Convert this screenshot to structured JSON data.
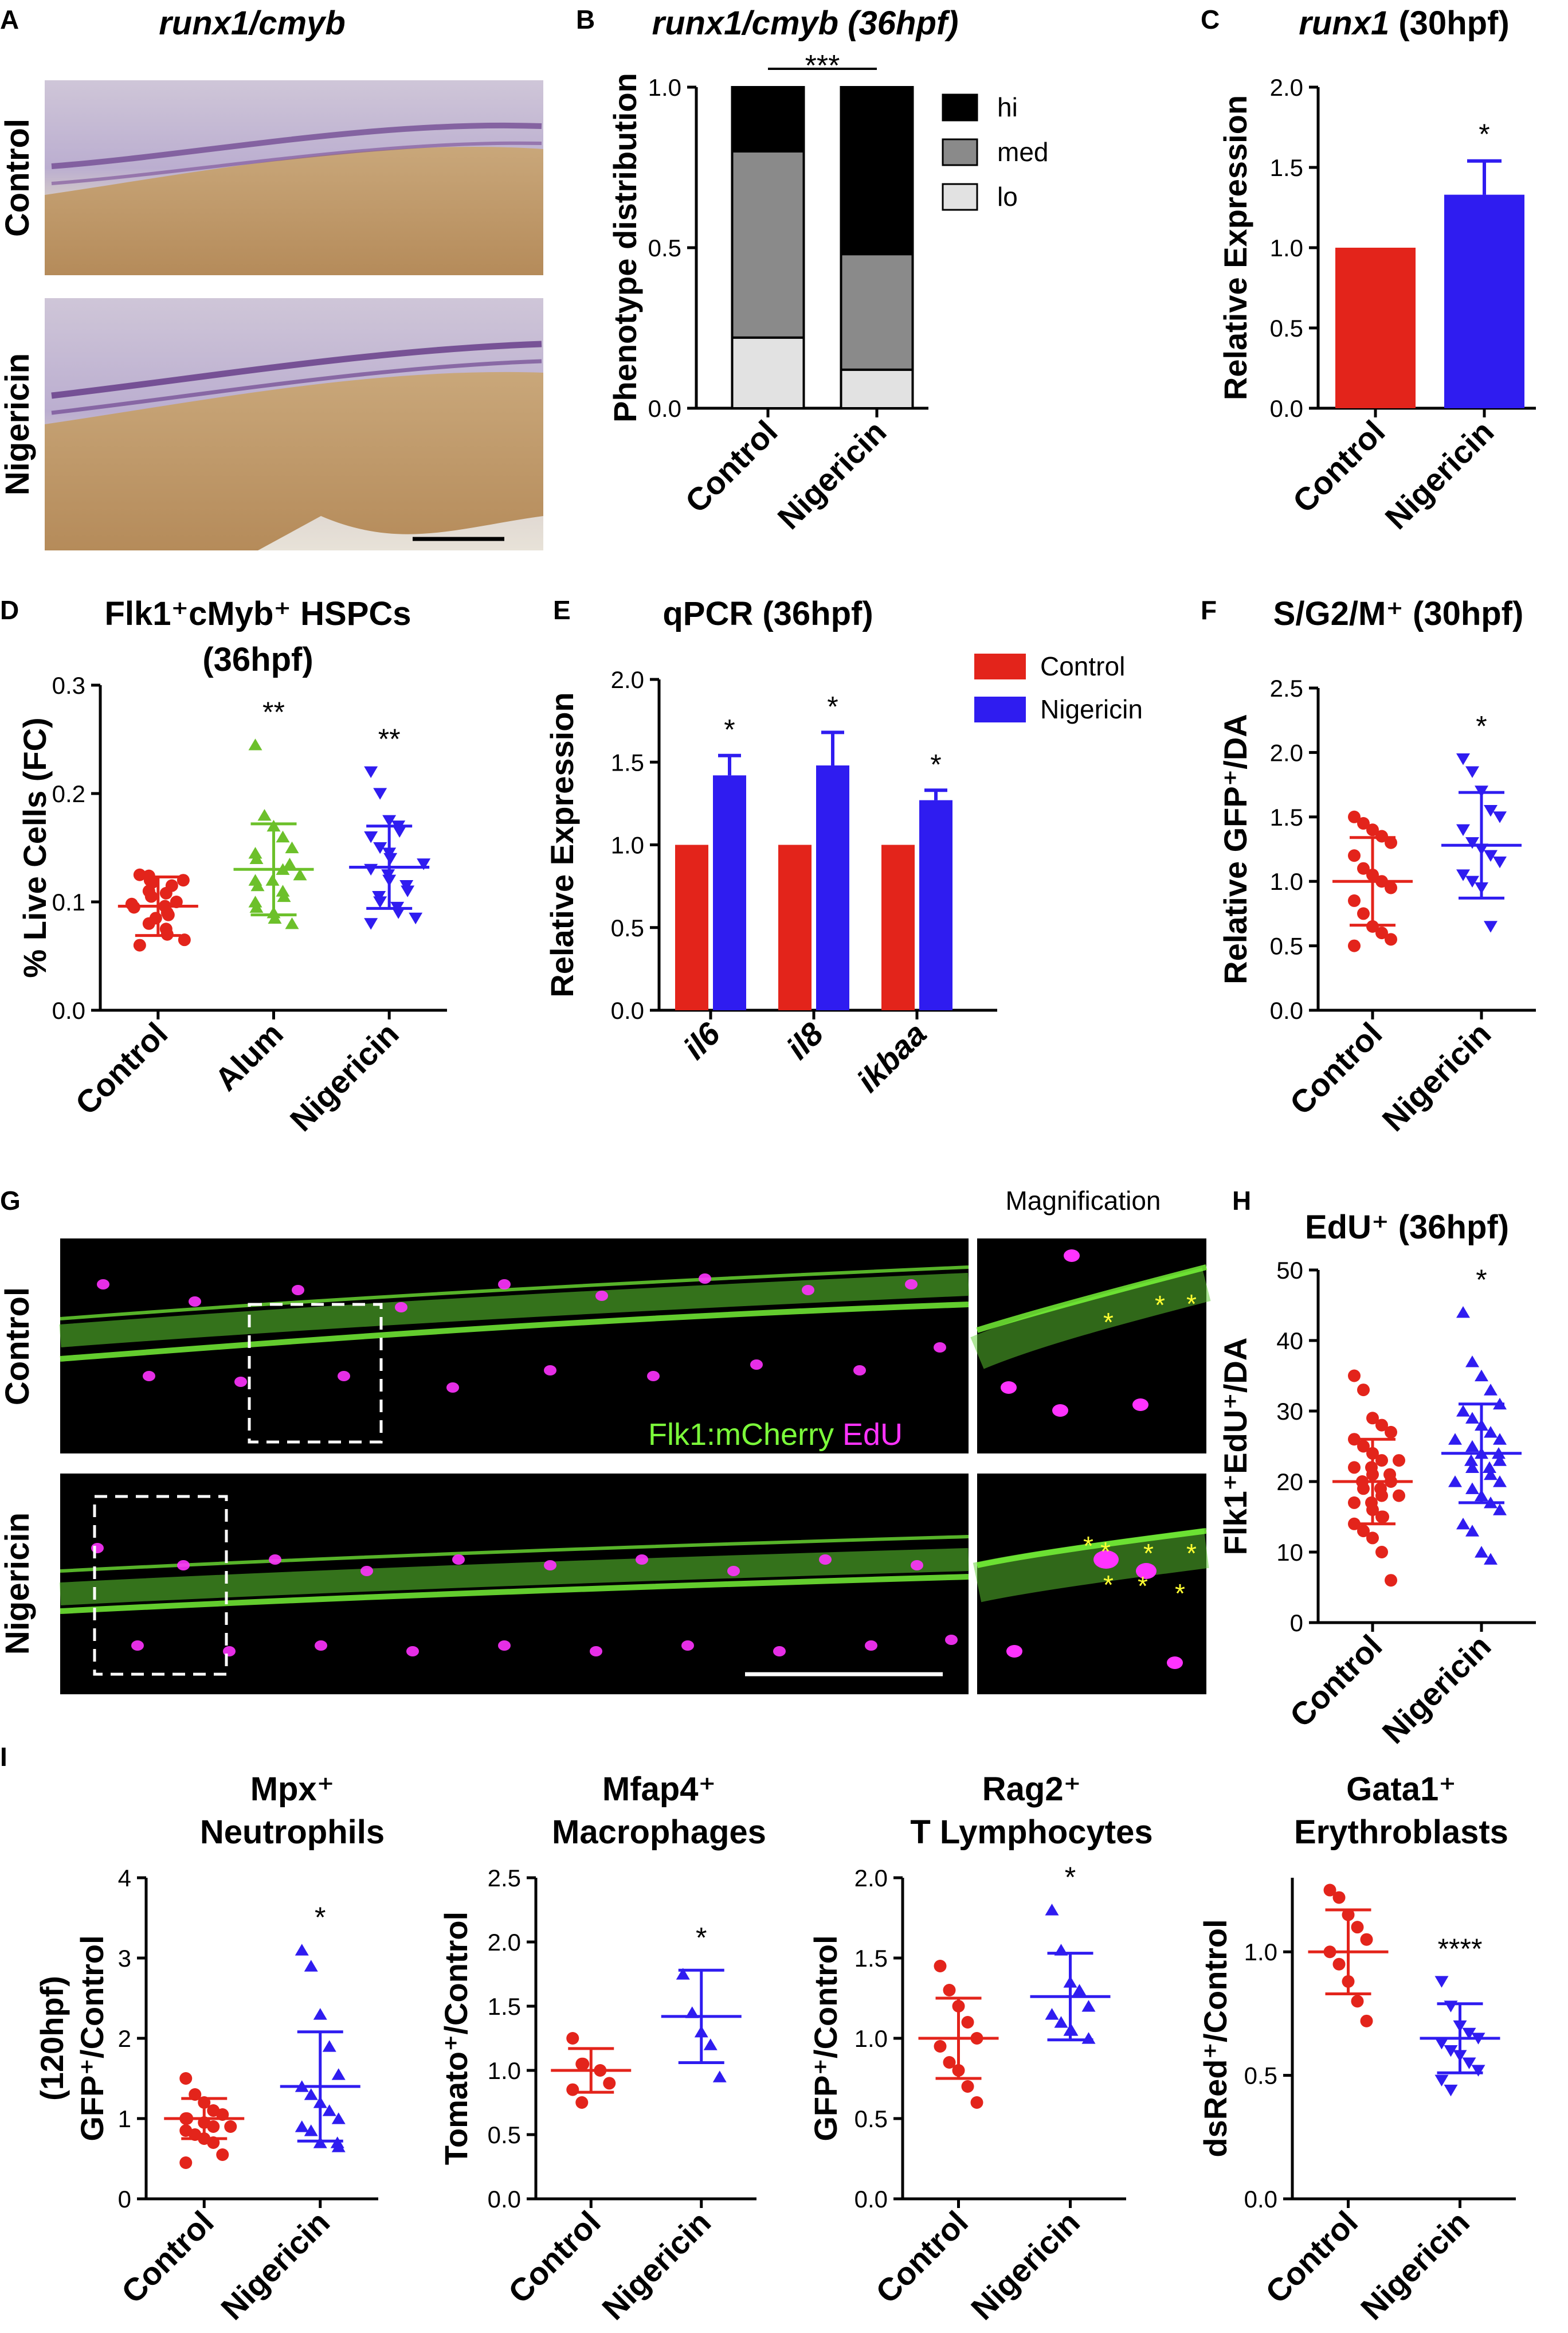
{
  "colors": {
    "control": "#e3241b",
    "alum": "#6cc02a",
    "nigericin": "#2f1cf0",
    "stack_hi": "#000000",
    "stack_med": "#8a8a8a",
    "stack_lo": "#e2e2e2",
    "flk1": "#7cff3a",
    "edu": "#ff33ff",
    "asterisk_marker": "#ffff33"
  },
  "panel_letters": [
    "A",
    "B",
    "C",
    "D",
    "E",
    "F",
    "G",
    "H",
    "I"
  ],
  "panel_a": {
    "title": "runx1/cmyb",
    "row_labels": [
      "Control",
      "Nigericin"
    ],
    "image_descriptions": [
      "in situ hybridization, control trunk",
      "in situ hybridization, nigericin trunk"
    ]
  },
  "panel_g": {
    "row_labels": [
      "Control",
      "Nigericin"
    ],
    "legend_flk1": "Flk1:mCherry",
    "legend_edu": "EdU",
    "magnification_label": "Magnification",
    "mark_symbol": "*"
  },
  "chart_data": [
    {
      "id": "B",
      "type": "bar",
      "stacked": true,
      "title": "runx1/cmyb (36hpf)",
      "ylabel": "Phenotype distribution",
      "categories": [
        "Control",
        "Nigericin"
      ],
      "ylim": [
        0,
        1.0
      ],
      "yticks": [
        "0.0",
        "0.5",
        "1.0"
      ],
      "series": [
        {
          "name": "lo",
          "values": [
            0.22,
            0.12
          ]
        },
        {
          "name": "med",
          "values": [
            0.58,
            0.36
          ]
        },
        {
          "name": "hi",
          "values": [
            0.2,
            0.52
          ]
        }
      ],
      "significance": "***",
      "legend_placement": "right"
    },
    {
      "id": "C",
      "type": "bar",
      "title": "runx1 (30hpf)",
      "ylabel": "Relative Expression",
      "categories": [
        "Control",
        "Nigericin"
      ],
      "values": [
        1.0,
        1.33
      ],
      "errors": [
        0,
        0.21
      ],
      "ylim": [
        0,
        2.0
      ],
      "yticks": [
        "0.0",
        "0.5",
        "1.0",
        "1.5",
        "2.0"
      ],
      "significance": [
        "",
        "*"
      ]
    },
    {
      "id": "D",
      "type": "scatter",
      "title": "Flk1⁺cMyb⁺ HSPCs",
      "subtitle": "(36hpf)",
      "ylabel": "% Live Cells (FC)",
      "categories": [
        "Control",
        "Alum",
        "Nigericin"
      ],
      "ylim": [
        0,
        0.3
      ],
      "yticks": [
        "0.0",
        "0.1",
        "0.2",
        "0.3"
      ],
      "means": [
        0.096,
        0.13,
        0.132
      ],
      "sd": [
        0.027,
        0.042,
        0.038
      ],
      "points": [
        [
          0.125,
          0.124,
          0.12,
          0.12,
          0.118,
          0.115,
          0.11,
          0.108,
          0.105,
          0.1,
          0.098,
          0.096,
          0.095,
          0.09,
          0.088,
          0.085,
          0.08,
          0.075,
          0.07,
          0.065,
          0.06
        ],
        [
          0.245,
          0.18,
          0.17,
          0.16,
          0.15,
          0.145,
          0.14,
          0.135,
          0.13,
          0.125,
          0.12,
          0.12,
          0.115,
          0.11,
          0.105,
          0.1,
          0.095,
          0.09,
          0.085,
          0.08
        ],
        [
          0.22,
          0.2,
          0.175,
          0.17,
          0.165,
          0.16,
          0.15,
          0.145,
          0.14,
          0.135,
          0.13,
          0.125,
          0.12,
          0.115,
          0.11,
          0.105,
          0.1,
          0.095,
          0.09,
          0.085,
          0.08
        ]
      ],
      "significance": [
        "",
        "**",
        "**"
      ]
    },
    {
      "id": "E",
      "type": "bar",
      "title": "qPCR (36hpf)",
      "ylabel": "Relative Expression",
      "categories": [
        "il6",
        "il8",
        "ikbaa"
      ],
      "series": [
        {
          "name": "Control",
          "values": [
            1.0,
            1.0,
            1.0
          ],
          "errors": [
            0,
            0,
            0
          ]
        },
        {
          "name": "Nigericin",
          "values": [
            1.42,
            1.48,
            1.27
          ],
          "errors": [
            0.12,
            0.2,
            0.06
          ]
        }
      ],
      "ylim": [
        0,
        2.0
      ],
      "yticks": [
        "0.0",
        "0.5",
        "1.0",
        "1.5",
        "2.0"
      ],
      "significance": [
        "*",
        "*",
        "*"
      ],
      "legend_placement": "top-right"
    },
    {
      "id": "F",
      "type": "scatter",
      "title": "S/G2/M⁺ (30hpf)",
      "ylabel": "Relative GFP⁺/DA",
      "categories": [
        "Control",
        "Nigericin"
      ],
      "ylim": [
        0,
        2.5
      ],
      "yticks": [
        "0.0",
        "0.5",
        "1.0",
        "1.5",
        "2.0",
        "2.5"
      ],
      "means": [
        1.0,
        1.28
      ],
      "sd": [
        0.34,
        0.41
      ],
      "points": [
        [
          1.5,
          1.45,
          1.4,
          1.35,
          1.3,
          1.2,
          1.1,
          1.05,
          1.0,
          0.95,
          0.85,
          0.75,
          0.65,
          0.6,
          0.55,
          0.5
        ],
        [
          1.95,
          1.85,
          1.7,
          1.55,
          1.5,
          1.4,
          1.3,
          1.25,
          1.2,
          1.15,
          1.05,
          1.0,
          0.95,
          0.65
        ]
      ],
      "significance": [
        "",
        "*"
      ]
    },
    {
      "id": "H",
      "type": "scatter",
      "title": "EdU⁺ (36hpf)",
      "ylabel": "Flk1⁺EdU⁺/DA",
      "categories": [
        "Control",
        "Nigericin"
      ],
      "ylim": [
        0,
        50
      ],
      "yticks": [
        "0",
        "10",
        "20",
        "30",
        "40",
        "50"
      ],
      "means": [
        20,
        24
      ],
      "sd": [
        6,
        7
      ],
      "points": [
        [
          35,
          33,
          29,
          28,
          27,
          26,
          25,
          24,
          23,
          23,
          22,
          22,
          21,
          21,
          20,
          20,
          19,
          19,
          18,
          18,
          17,
          17,
          16,
          15,
          15,
          14,
          13,
          12,
          10,
          6
        ],
        [
          44,
          37,
          35,
          33,
          31,
          30,
          29,
          28,
          27,
          26,
          26,
          25,
          24,
          24,
          23,
          23,
          22,
          22,
          21,
          20,
          20,
          19,
          18,
          17,
          16,
          14,
          13,
          10,
          9
        ]
      ],
      "significance": [
        "",
        "*"
      ]
    },
    {
      "id": "I1",
      "type": "scatter",
      "title": "Mpx⁺",
      "subtitle": "Neutrophils",
      "ylabel": "GFP⁺/Control",
      "ylabel2": "(120hpf)",
      "categories": [
        "Control",
        "Nigericin"
      ],
      "ylim": [
        0,
        4
      ],
      "yticks": [
        "0",
        "1",
        "2",
        "3",
        "4"
      ],
      "means": [
        1.0,
        1.4
      ],
      "sd": [
        0.25,
        0.68
      ],
      "points": [
        [
          1.5,
          1.3,
          1.2,
          1.1,
          1.05,
          1.0,
          1.0,
          0.95,
          0.9,
          0.9,
          0.85,
          0.8,
          0.75,
          0.7,
          0.55,
          0.45
        ],
        [
          3.1,
          2.9,
          2.3,
          1.9,
          1.55,
          1.4,
          1.3,
          1.2,
          1.1,
          1.0,
          0.9,
          0.85,
          0.7,
          0.7,
          0.65
        ]
      ],
      "significance": [
        "",
        "*"
      ]
    },
    {
      "id": "I2",
      "type": "scatter",
      "title": "Mfap4⁺",
      "subtitle": "Macrophages",
      "ylabel": "Tomato⁺/Control",
      "categories": [
        "Control",
        "Nigericin"
      ],
      "ylim": [
        0,
        2.5
      ],
      "yticks": [
        "0.0",
        "0.5",
        "1.0",
        "1.5",
        "2.0",
        "2.5"
      ],
      "means": [
        1.0,
        1.42
      ],
      "sd": [
        0.17,
        0.36
      ],
      "points": [
        [
          1.25,
          1.05,
          1.05,
          1.0,
          0.9,
          0.85,
          0.75
        ],
        [
          1.75,
          1.45,
          1.3,
          1.2,
          0.95
        ]
      ],
      "significance": [
        "",
        "*"
      ]
    },
    {
      "id": "I3",
      "type": "scatter",
      "title": "Rag2⁺",
      "subtitle": "T Lymphocytes",
      "ylabel": "GFP⁺/Control",
      "categories": [
        "Control",
        "Nigericin"
      ],
      "ylim": [
        0,
        2.0
      ],
      "yticks": [
        "0.0",
        "0.5",
        "1.0",
        "1.5",
        "2.0"
      ],
      "means": [
        1.0,
        1.26
      ],
      "sd": [
        0.25,
        0.27
      ],
      "points": [
        [
          1.45,
          1.3,
          1.2,
          1.1,
          1.0,
          0.95,
          0.85,
          0.8,
          0.7,
          0.6
        ],
        [
          1.8,
          1.55,
          1.35,
          1.3,
          1.2,
          1.15,
          1.1,
          1.05,
          1.05,
          1.0
        ]
      ],
      "significance": [
        "",
        "*"
      ]
    },
    {
      "id": "I4",
      "type": "scatter",
      "title": "Gata1⁺",
      "subtitle": "Erythroblasts",
      "ylabel": "dsRed⁺/Control",
      "categories": [
        "Control",
        "Nigericin"
      ],
      "ylim": [
        0,
        1.3
      ],
      "yticks": [
        "0.0",
        "0.5",
        "1.0"
      ],
      "means": [
        1.0,
        0.65
      ],
      "sd": [
        0.17,
        0.14
      ],
      "points": [
        [
          1.25,
          1.22,
          1.15,
          1.1,
          1.05,
          1.0,
          0.95,
          0.88,
          0.8,
          0.72
        ],
        [
          0.88,
          0.78,
          0.7,
          0.67,
          0.65,
          0.63,
          0.6,
          0.58,
          0.55,
          0.52,
          0.48,
          0.44
        ]
      ],
      "significance": [
        "",
        "****"
      ]
    }
  ]
}
